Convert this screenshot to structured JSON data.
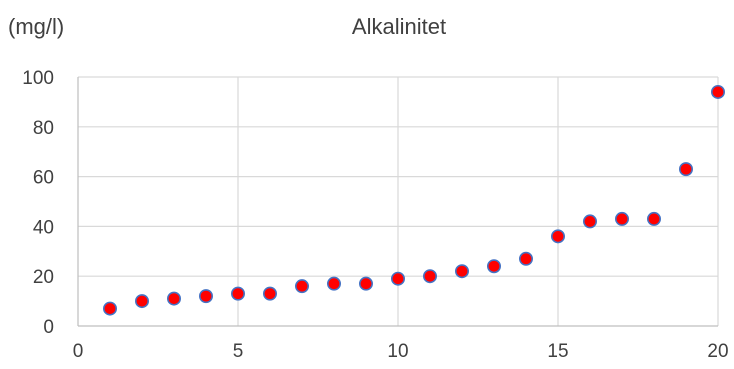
{
  "chart_data": {
    "type": "scatter",
    "title": "Alkalinitet",
    "ylabel": "(mg/l)",
    "xlabel": "",
    "xlim": [
      0,
      20
    ],
    "ylim": [
      0,
      100
    ],
    "xticks": [
      0,
      5,
      10,
      15,
      20
    ],
    "yticks": [
      0,
      20,
      40,
      60,
      80,
      100
    ],
    "grid": true,
    "legend": "none",
    "marker_color": "#ff0000",
    "marker_edge_color": "#4472c4",
    "x": [
      1,
      2,
      3,
      4,
      5,
      6,
      7,
      8,
      9,
      10,
      11,
      12,
      13,
      14,
      15,
      16,
      17,
      18,
      19,
      20
    ],
    "y": [
      7,
      10,
      11,
      12,
      13,
      13,
      16,
      17,
      17,
      19,
      20,
      22,
      24,
      27,
      36,
      42,
      43,
      43,
      63,
      94
    ]
  }
}
